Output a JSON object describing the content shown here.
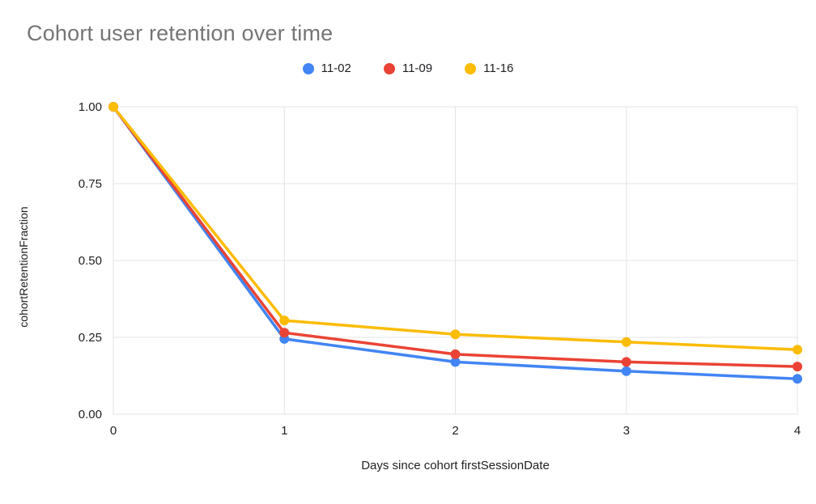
{
  "title": "Cohort user retention over time",
  "chart_data": {
    "type": "line",
    "title": "Cohort user retention over time",
    "xlabel": "Days since cohort firstSessionDate",
    "ylabel": "cohortRetentionFraction",
    "x": [
      0,
      1,
      2,
      3,
      4
    ],
    "x_tick_labels": [
      "0",
      "1",
      "2",
      "3",
      "4"
    ],
    "y_ticks": [
      0.0,
      0.25,
      0.5,
      0.75,
      1.0
    ],
    "y_tick_labels": [
      "0.00",
      "0.25",
      "0.50",
      "0.75",
      "1.00"
    ],
    "ylim": [
      0,
      1
    ],
    "grid": true,
    "legend_position": "top",
    "series": [
      {
        "name": "11-02",
        "color": "#4285F4",
        "values": [
          1.0,
          0.245,
          0.17,
          0.14,
          0.115
        ]
      },
      {
        "name": "11-09",
        "color": "#EA4335",
        "values": [
          1.0,
          0.265,
          0.195,
          0.17,
          0.155
        ]
      },
      {
        "name": "11-16",
        "color": "#FBBC04",
        "values": [
          1.0,
          0.305,
          0.26,
          0.235,
          0.21
        ]
      }
    ]
  },
  "colors": {
    "title_text": "#757575",
    "axis_text": "#202124",
    "gridline": "#e3e3e3",
    "background": "#ffffff"
  }
}
